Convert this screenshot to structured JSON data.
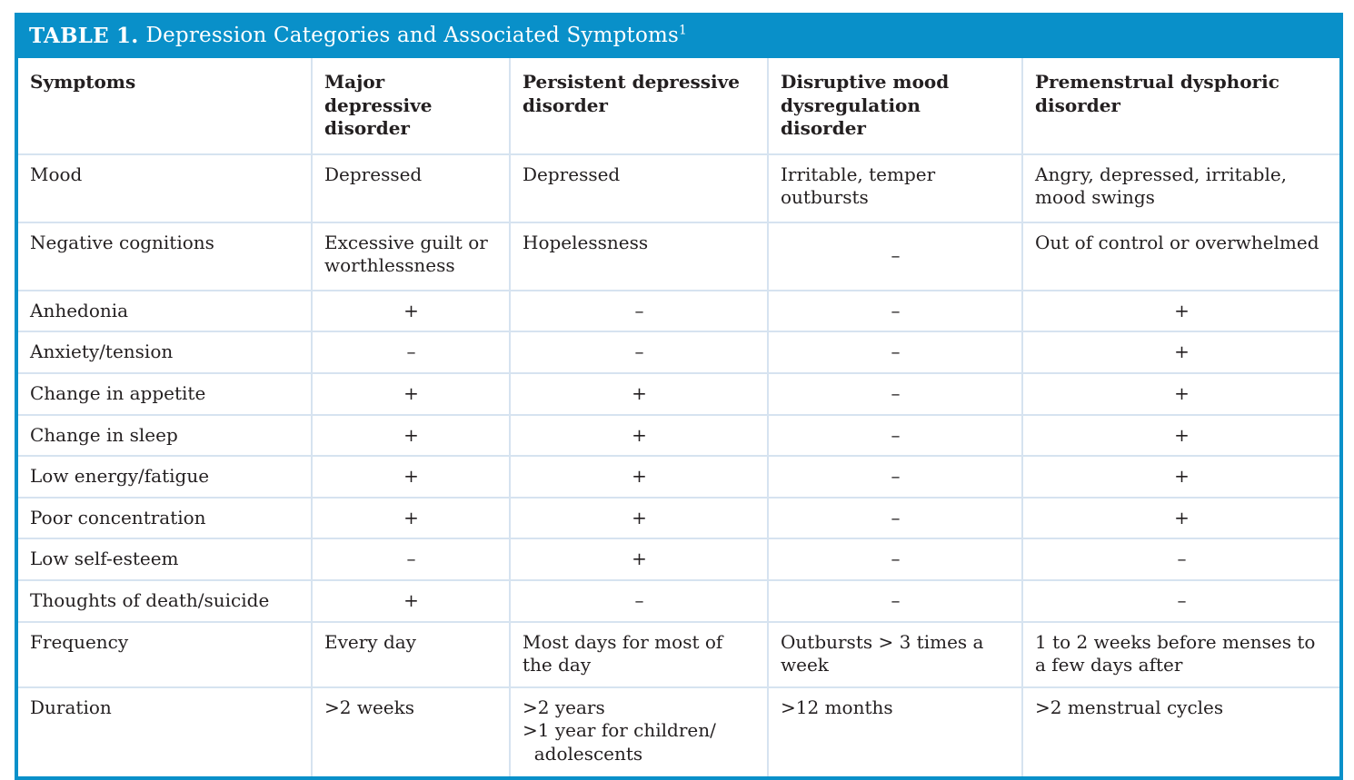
{
  "title": {
    "prefix": "TABLE 1.",
    "text": "Depression Categories and Associated Symptoms",
    "footnote_ref": "1"
  },
  "colors": {
    "header_bg": "#0990c9",
    "table_border": "#0990c9",
    "grid_divider": "#d6e3f0",
    "body_text": "#231f20",
    "title_text": "#ffffff"
  },
  "table": {
    "columns": [
      "Symptoms",
      "Major depressive disorder",
      "Persistent depressive disorder",
      "Disruptive mood dysregulation disorder",
      "Premenstrual dysphoric disorder"
    ],
    "rows": [
      {
        "cells": [
          "Mood",
          "Depressed",
          "Depressed",
          "Irritable, temper outbursts",
          "Angry, depressed, irritable, mood swings"
        ]
      },
      {
        "cells": [
          "Negative cognitions",
          "Excessive guilt or worthlessness",
          "Hopelessness",
          "–",
          "Out of control or overwhelmed"
        ]
      },
      {
        "cells": [
          "Anhedonia",
          "+",
          "–",
          "–",
          "+"
        ]
      },
      {
        "cells": [
          "Anxiety/tension",
          "–",
          "–",
          "–",
          "+"
        ]
      },
      {
        "cells": [
          "Change in appetite",
          "+",
          "+",
          "–",
          "+"
        ]
      },
      {
        "cells": [
          "Change in sleep",
          "+",
          "+",
          "–",
          "+"
        ]
      },
      {
        "cells": [
          "Low energy/fatigue",
          "+",
          "+",
          "–",
          "+"
        ]
      },
      {
        "cells": [
          "Poor concentration",
          "+",
          "+",
          "–",
          "+"
        ]
      },
      {
        "cells": [
          "Low self-esteem",
          "–",
          "+",
          "–",
          "–"
        ]
      },
      {
        "cells": [
          "Thoughts of death/suicide",
          "+",
          "–",
          "–",
          "–"
        ]
      },
      {
        "cells": [
          "Frequency",
          "Every day",
          "Most days for most of the day",
          "Outbursts > 3 times a week",
          "1 to 2 weeks before menses to a few days after"
        ]
      },
      {
        "cells": [
          "Duration",
          ">2 weeks",
          ">2 years\n>1 year for children/\n  adolescents",
          ">12 months",
          ">2 menstrual cycles"
        ]
      }
    ]
  }
}
